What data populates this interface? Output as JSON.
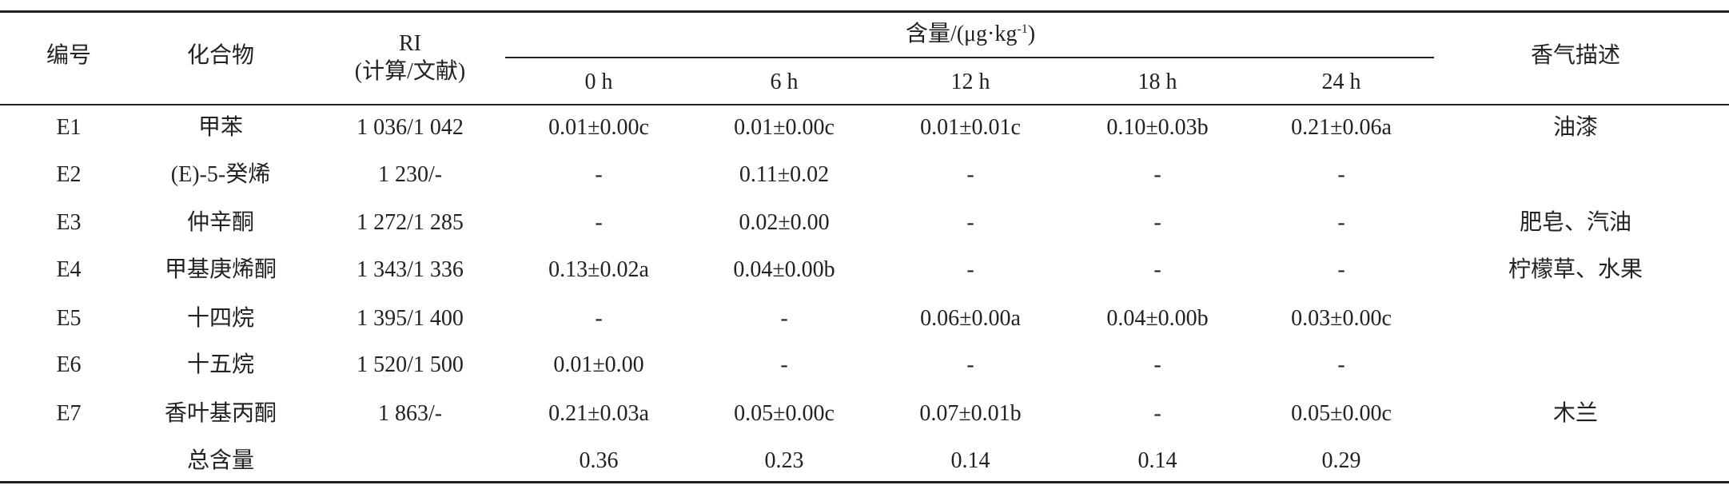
{
  "table": {
    "header": {
      "id": "编号",
      "compound": "化合物",
      "ri": "RI",
      "ri_note": "(计算/文献)",
      "content": "含量/(μg·kg",
      "content_sup": "-1",
      "content_close": ")",
      "times": [
        "0 h",
        "6 h",
        "12 h",
        "18 h",
        "24 h"
      ],
      "aroma": "香气描述"
    },
    "rows": [
      [
        "E1",
        "甲苯",
        "1 036/1 042",
        "0.01±0.00c",
        "0.01±0.00c",
        "0.01±0.01c",
        "0.10±0.03b",
        "0.21±0.06a",
        "油漆"
      ],
      [
        "E2",
        "(E)-5-癸烯",
        "1 230/-",
        "-",
        "0.11±0.02",
        "-",
        "-",
        "-",
        null
      ],
      [
        "E3",
        "仲辛酮",
        "1 272/1 285",
        "-",
        "0.02±0.00",
        "-",
        "-",
        "-",
        "肥皂、汽油"
      ],
      [
        "E4",
        "甲基庚烯酮",
        "1 343/1 336",
        "0.13±0.02a",
        "0.04±0.00b",
        "-",
        "-",
        "-",
        "柠檬草、水果"
      ],
      [
        "E5",
        "十四烷",
        "1 395/1 400",
        "-",
        "-",
        "0.06±0.00a",
        "0.04±0.00b",
        "0.03±0.00c",
        null
      ],
      [
        "E6",
        "十五烷",
        "1 520/1 500",
        "0.01±0.00",
        "-",
        "-",
        "-",
        "-",
        null
      ],
      [
        "E7",
        "香叶基丙酮",
        "1 863/-",
        "0.21±0.03a",
        "0.05±0.00c",
        "0.07±0.01b",
        "-",
        "0.05±0.00c",
        "木兰"
      ],
      [
        null,
        "总含量",
        null,
        "0.36",
        "0.23",
        "0.14",
        "0.14",
        "0.29",
        null
      ]
    ]
  }
}
